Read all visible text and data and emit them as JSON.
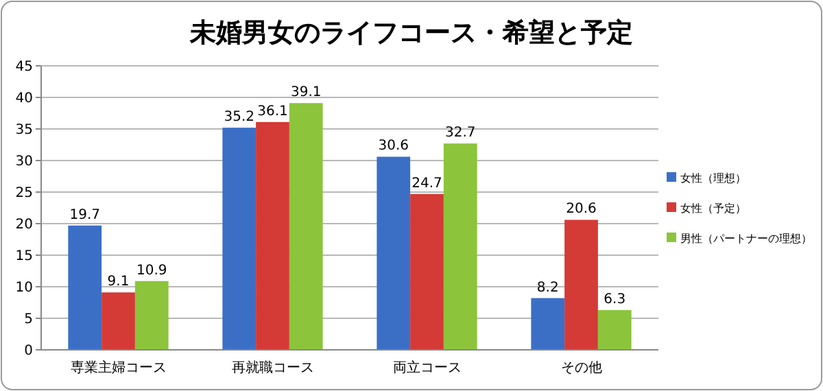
{
  "chart_data": {
    "type": "bar",
    "title": "未婚男女のライフコース・希望と予定",
    "categories": [
      "専業主婦コース",
      "再就職コース",
      "両立コース",
      "その他"
    ],
    "series": [
      {
        "name": "女性（理想）",
        "color": "#3b6fc6",
        "values": [
          19.7,
          35.2,
          30.6,
          8.2
        ]
      },
      {
        "name": "女性（予定）",
        "color": "#d43a36",
        "values": [
          9.1,
          36.1,
          24.7,
          20.6
        ]
      },
      {
        "name": "男性（パートナーの理想）",
        "color": "#8cc43c",
        "values": [
          10.9,
          39.1,
          32.7,
          6.3
        ]
      }
    ],
    "ylim": [
      0,
      45
    ],
    "yticks": [
      0,
      5,
      10,
      15,
      20,
      25,
      30,
      35,
      40,
      45
    ],
    "grid": "y",
    "legend": "right",
    "data_labels": true
  }
}
